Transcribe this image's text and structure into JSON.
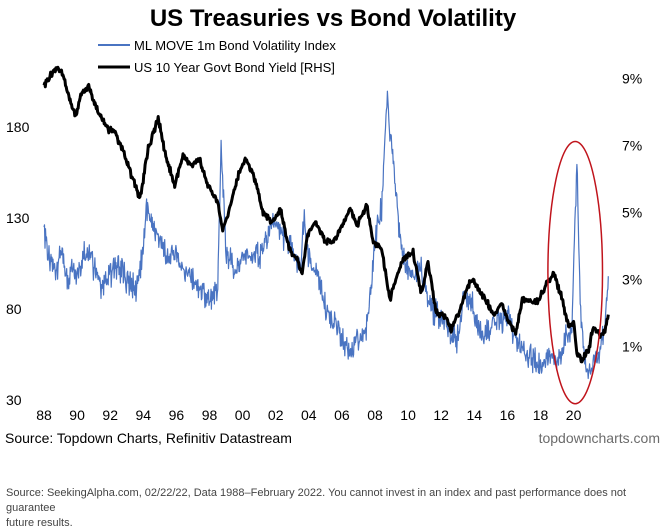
{
  "chart_data": {
    "type": "line",
    "title": "US Treasuries vs Bond Volatility",
    "source": "Source: Topdown Charts, Refinitiv Datastream",
    "brand": "topdowncharts.com",
    "x_ticks": [
      "88",
      "90",
      "92",
      "94",
      "96",
      "98",
      "00",
      "02",
      "04",
      "06",
      "08",
      "10",
      "12",
      "14",
      "16",
      "18",
      "20"
    ],
    "xlim": [
      1988,
      2022.2
    ],
    "y_left": {
      "ticks": [
        "30",
        "80",
        "130",
        "180"
      ],
      "ylim": [
        30,
        225
      ]
    },
    "y_right": {
      "ticks": [
        "1%",
        "3%",
        "5%",
        "7%",
        "9%"
      ],
      "ylim": [
        -0.6,
        10
      ]
    },
    "legend": {
      "placement": "top-left"
    },
    "annotation": {
      "type": "ellipse",
      "color": "#c0141c",
      "x_center": 2020.1,
      "y_center": 100,
      "x_radius": 1.65,
      "y_radius": 72
    },
    "series": [
      {
        "name": "ML MOVE 1m Bond Volatility Index",
        "axis": "left",
        "color": "#4a74c2",
        "points": [
          [
            1988.0,
            125
          ],
          [
            1988.3,
            108
          ],
          [
            1988.7,
            100
          ],
          [
            1989.0,
            110
          ],
          [
            1989.4,
            96
          ],
          [
            1989.8,
            104
          ],
          [
            1990.0,
            100
          ],
          [
            1990.4,
            112
          ],
          [
            1990.8,
            108
          ],
          [
            1991.2,
            98
          ],
          [
            1991.6,
            92
          ],
          [
            1992.0,
            100
          ],
          [
            1992.5,
            104
          ],
          [
            1993.0,
            95
          ],
          [
            1993.5,
            90
          ],
          [
            1993.9,
            105
          ],
          [
            1994.2,
            135
          ],
          [
            1994.6,
            125
          ],
          [
            1995.0,
            118
          ],
          [
            1995.5,
            108
          ],
          [
            1996.0,
            110
          ],
          [
            1996.5,
            102
          ],
          [
            1997.0,
            95
          ],
          [
            1997.6,
            88
          ],
          [
            1998.0,
            82
          ],
          [
            1998.5,
            92
          ],
          [
            1998.7,
            170
          ],
          [
            1999.0,
            110
          ],
          [
            1999.6,
            100
          ],
          [
            2000.0,
            112
          ],
          [
            2000.5,
            106
          ],
          [
            2001.0,
            110
          ],
          [
            2001.5,
            118
          ],
          [
            2001.8,
            130
          ],
          [
            2002.2,
            122
          ],
          [
            2002.6,
            118
          ],
          [
            2003.0,
            112
          ],
          [
            2003.5,
            100
          ],
          [
            2003.7,
            130
          ],
          [
            2004.0,
            108
          ],
          [
            2004.5,
            100
          ],
          [
            2005.0,
            80
          ],
          [
            2005.5,
            74
          ],
          [
            2006.0,
            62
          ],
          [
            2006.5,
            58
          ],
          [
            2007.0,
            62
          ],
          [
            2007.5,
            70
          ],
          [
            2007.8,
            95
          ],
          [
            2008.0,
            118
          ],
          [
            2008.4,
            135
          ],
          [
            2008.75,
            200
          ],
          [
            2008.9,
            175
          ],
          [
            2009.1,
            160
          ],
          [
            2009.5,
            120
          ],
          [
            2009.9,
            102
          ],
          [
            2010.3,
            95
          ],
          [
            2010.7,
            105
          ],
          [
            2011.0,
            92
          ],
          [
            2011.5,
            80
          ],
          [
            2012.0,
            75
          ],
          [
            2012.5,
            68
          ],
          [
            2013.0,
            64
          ],
          [
            2013.4,
            88
          ],
          [
            2013.8,
            84
          ],
          [
            2014.2,
            70
          ],
          [
            2014.7,
            66
          ],
          [
            2015.2,
            74
          ],
          [
            2015.6,
            72
          ],
          [
            2016.0,
            78
          ],
          [
            2016.5,
            62
          ],
          [
            2017.0,
            58
          ],
          [
            2017.5,
            52
          ],
          [
            2018.0,
            50
          ],
          [
            2018.5,
            55
          ],
          [
            2019.0,
            50
          ],
          [
            2019.5,
            62
          ],
          [
            2019.9,
            70
          ],
          [
            2020.2,
            160
          ],
          [
            2020.4,
            82
          ],
          [
            2020.7,
            50
          ],
          [
            2021.0,
            42
          ],
          [
            2021.3,
            52
          ],
          [
            2021.6,
            58
          ],
          [
            2021.9,
            70
          ],
          [
            2022.1,
            98
          ]
        ]
      },
      {
        "name": "US 10 Year Govt Bond Yield [RHS]",
        "axis": "right",
        "color": "#000000",
        "points": [
          [
            1988.0,
            8.8
          ],
          [
            1988.4,
            9.1
          ],
          [
            1988.8,
            9.3
          ],
          [
            1989.1,
            9.2
          ],
          [
            1989.5,
            8.4
          ],
          [
            1989.9,
            7.9
          ],
          [
            1990.3,
            8.6
          ],
          [
            1990.7,
            8.8
          ],
          [
            1991.2,
            8.1
          ],
          [
            1991.8,
            7.5
          ],
          [
            1992.3,
            7.4
          ],
          [
            1992.8,
            6.8
          ],
          [
            1993.3,
            6.1
          ],
          [
            1993.8,
            5.4
          ],
          [
            1994.3,
            6.9
          ],
          [
            1994.9,
            7.8
          ],
          [
            1995.4,
            6.6
          ],
          [
            1995.9,
            5.8
          ],
          [
            1996.4,
            6.7
          ],
          [
            1996.9,
            6.4
          ],
          [
            1997.4,
            6.6
          ],
          [
            1997.9,
            5.8
          ],
          [
            1998.5,
            5.3
          ],
          [
            1998.8,
            4.5
          ],
          [
            1999.2,
            5.1
          ],
          [
            1999.8,
            6.2
          ],
          [
            2000.2,
            6.6
          ],
          [
            2000.8,
            5.9
          ],
          [
            2001.2,
            5.0
          ],
          [
            2001.8,
            4.7
          ],
          [
            2002.3,
            5.1
          ],
          [
            2002.8,
            3.9
          ],
          [
            2003.3,
            3.6
          ],
          [
            2003.6,
            3.2
          ],
          [
            2003.9,
            4.3
          ],
          [
            2004.4,
            4.7
          ],
          [
            2004.9,
            4.2
          ],
          [
            2005.5,
            4.1
          ],
          [
            2005.9,
            4.5
          ],
          [
            2006.5,
            5.1
          ],
          [
            2006.9,
            4.6
          ],
          [
            2007.5,
            5.2
          ],
          [
            2007.9,
            4.1
          ],
          [
            2008.4,
            3.9
          ],
          [
            2008.9,
            2.4
          ],
          [
            2009.3,
            3.1
          ],
          [
            2009.7,
            3.6
          ],
          [
            2010.3,
            3.8
          ],
          [
            2010.8,
            2.6
          ],
          [
            2011.2,
            3.5
          ],
          [
            2011.7,
            2.0
          ],
          [
            2012.3,
            1.9
          ],
          [
            2012.6,
            1.5
          ],
          [
            2013.0,
            1.9
          ],
          [
            2013.6,
            2.8
          ],
          [
            2013.9,
            3.0
          ],
          [
            2014.5,
            2.5
          ],
          [
            2014.9,
            2.2
          ],
          [
            2015.2,
            1.9
          ],
          [
            2015.6,
            2.3
          ],
          [
            2016.0,
            1.8
          ],
          [
            2016.5,
            1.4
          ],
          [
            2016.9,
            2.4
          ],
          [
            2017.5,
            2.3
          ],
          [
            2017.9,
            2.4
          ],
          [
            2018.4,
            2.9
          ],
          [
            2018.8,
            3.2
          ],
          [
            2019.2,
            2.6
          ],
          [
            2019.7,
            1.6
          ],
          [
            2020.0,
            1.7
          ],
          [
            2020.2,
            0.8
          ],
          [
            2020.5,
            0.6
          ],
          [
            2020.9,
            0.9
          ],
          [
            2021.2,
            1.6
          ],
          [
            2021.6,
            1.3
          ],
          [
            2021.9,
            1.5
          ],
          [
            2022.1,
            1.95
          ]
        ]
      }
    ]
  },
  "footer": {
    "line1": "Source: SeekingAlpha.com, 02/22/22, Data 1988–February 2022. You cannot invest in an index and past performance does not guarantee",
    "line2": "future results."
  }
}
